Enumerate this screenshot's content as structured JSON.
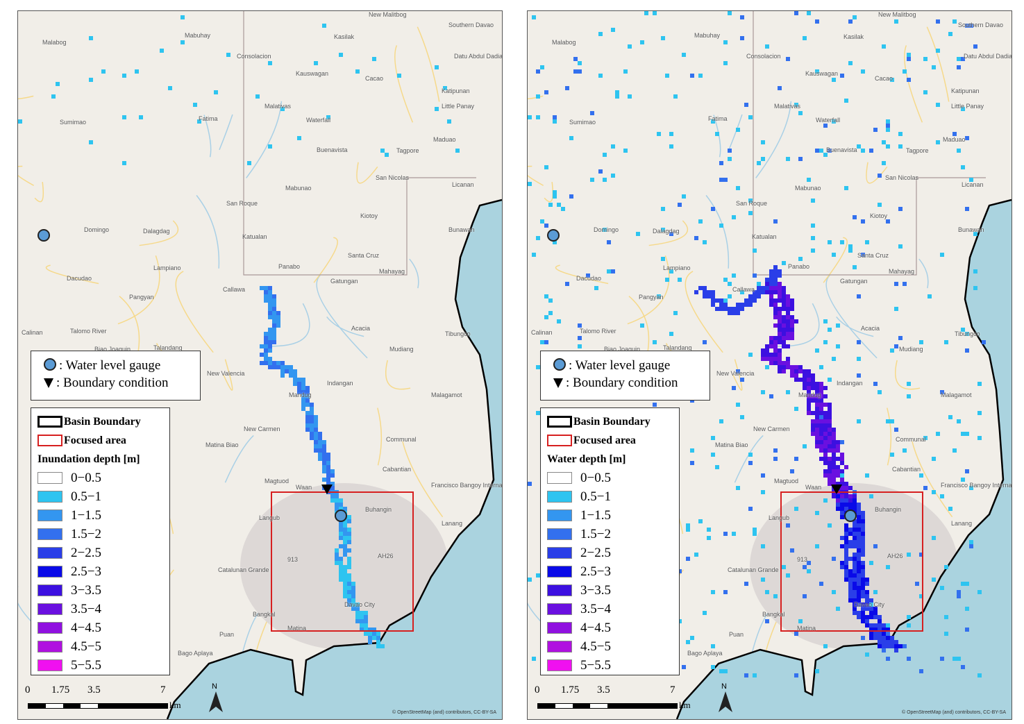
{
  "panels": [
    {
      "id": "left",
      "depth_title": "Inundation depth [m]",
      "variant": "low"
    },
    {
      "id": "right",
      "depth_title": "Water depth [m]",
      "variant": "high"
    }
  ],
  "legend": {
    "gauge": ": Water level gauge",
    "boundary_condition": ": Boundary condition",
    "basin_boundary": "Basin Boundary",
    "focused_area": "Focused area",
    "classes": [
      {
        "label": "0−0.5",
        "color": "#ffffff"
      },
      {
        "label": "0.5−1",
        "color": "#2ec4f0"
      },
      {
        "label": "1−1.5",
        "color": "#3396f0"
      },
      {
        "label": "1.5−2",
        "color": "#3370ee"
      },
      {
        "label": "2−2.5",
        "color": "#2a3ee8"
      },
      {
        "label": "2.5−3",
        "color": "#0a0ae8"
      },
      {
        "label": "3−3.5",
        "color": "#3c10e0"
      },
      {
        "label": "3.5−4",
        "color": "#6a10e0"
      },
      {
        "label": "4−4.5",
        "color": "#9010e0"
      },
      {
        "label": "4.5−5",
        "color": "#b010e0"
      },
      {
        "label": "5−5.5",
        "color": "#f010f0"
      }
    ]
  },
  "scale": {
    "ticks": [
      "0",
      "1.75",
      "3.5",
      "7"
    ],
    "unit": "km"
  },
  "north": "N",
  "attribution": "© OpenStreetMap (and) contributors, CC-BY-SA",
  "colors": {
    "sea": "#aad3df",
    "land": "#f1eee8",
    "basin": "#000000",
    "focused": "#d62020",
    "gauge": "#5b9bd5"
  },
  "places": [
    "Malabog",
    "Mabuhay",
    "Consolacion",
    "Kasilak",
    "New Malitbog",
    "Southern Davao",
    "Datu Abdul Dadia",
    "Kauswagan",
    "Cacao",
    "Katipunan",
    "Little Panay",
    "Malativas",
    "Sumimao",
    "Fatima",
    "Waterfall",
    "Maduao",
    "Buenavista",
    "Tagpore",
    "San Nicolas",
    "Licanan",
    "Mabunao",
    "San Roque",
    "Domingo",
    "Dalagdag",
    "Katualan",
    "Kiotoy",
    "Bunawan",
    "Lampiano",
    "Panabo",
    "Santa Cruz",
    "Mahayag",
    "Dacudao",
    "Gatungan",
    "Callawa",
    "Pangyan",
    "Acacia",
    "Tibungco",
    "Calinan",
    "Talomo River",
    "Mudiang",
    "Talandang",
    "Biao Joaquin",
    "Indangan",
    "Malagamot",
    "New Valencia",
    "Mandug",
    "Communal",
    "New Carmen",
    "Matina Biao",
    "Cabantian",
    "Magtuod",
    "Waan",
    "Buhangin",
    "Lanang",
    "Langub",
    "Catalunan Grande",
    "Bangkal",
    "Matina",
    "Davao City",
    "Puan",
    "Bago Aplaya",
    "Francisco Bangoy International Airport",
    "913",
    "AH26"
  ]
}
